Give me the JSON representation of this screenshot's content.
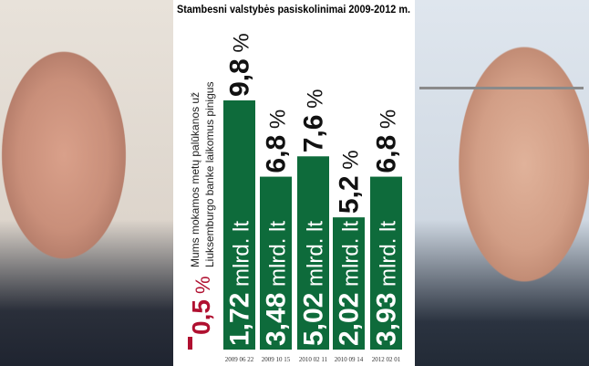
{
  "chart_data": {
    "type": "bar",
    "title": "Stambesni valstybės pasiskolinimai 2009-2012 m.",
    "categories": [
      "2009 06 22",
      "2009 10 15",
      "2010 02 11",
      "2010 09 14",
      "2012 02 01"
    ],
    "series": [
      {
        "values": [
          9.8,
          6.8,
          7.6,
          5.2,
          6.8
        ]
      }
    ],
    "rate_labels": [
      "9,8",
      "6,8",
      "7,6",
      "5,2",
      "6,8"
    ],
    "amount_labels": [
      "1,72",
      "3,48",
      "5,02",
      "2,02",
      "3,93"
    ],
    "amount_unit": " mlrd. lt",
    "percent_unit": " %",
    "reference": {
      "value": 0.5,
      "label": "0,5",
      "text_line1": "Mums mokamos metų palūkanos už",
      "text_line2": "Liuksemburgo banke laikomus pinigus"
    },
    "ylim": [
      0,
      10.5
    ],
    "colors": {
      "bars": "#0e6b3b",
      "reference": "#b01030",
      "text": "#111111"
    }
  }
}
